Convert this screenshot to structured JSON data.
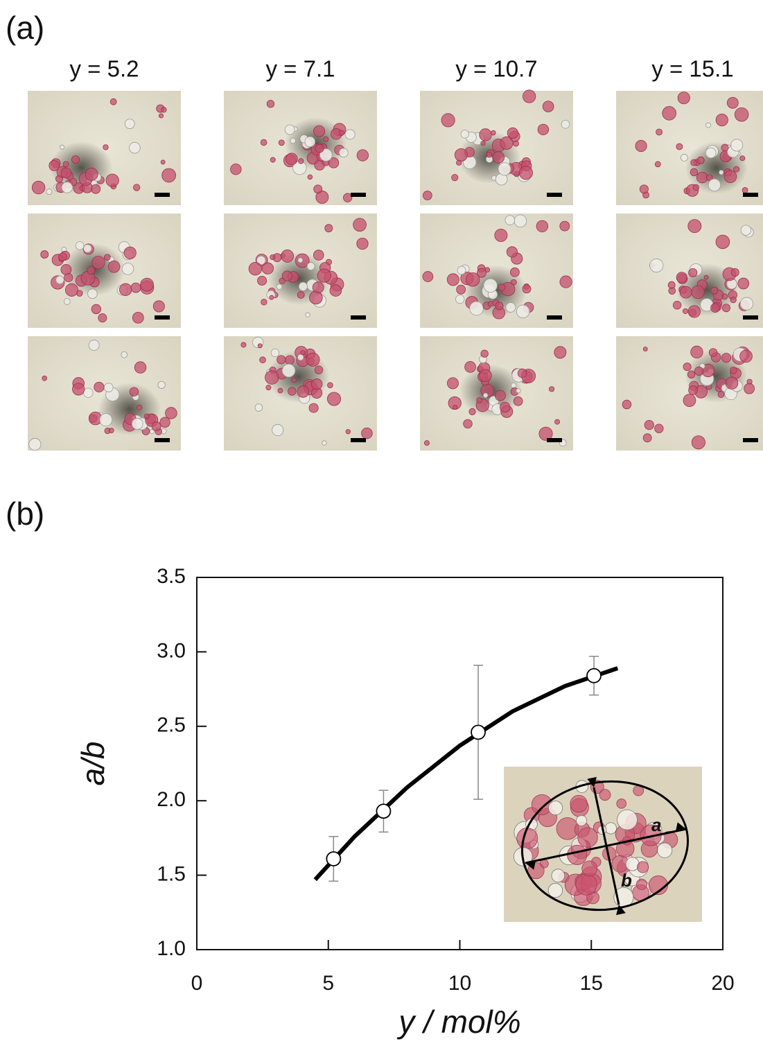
{
  "panel_a": {
    "label": "(a)",
    "columns": [
      "y = 5.2",
      "y = 7.1",
      "y = 10.7",
      "y = 15.1"
    ]
  },
  "panel_b": {
    "label": "(b)"
  },
  "chart_data": {
    "type": "scatter",
    "x_label": "y / mol%",
    "y_label": "a/b",
    "xlim": [
      0,
      20
    ],
    "xticks": [
      0,
      5,
      10,
      15,
      20
    ],
    "ylim": [
      1.0,
      3.5
    ],
    "yticks": [
      {
        "value": 1.0,
        "label": "1.0"
      },
      {
        "value": 1.5,
        "label": "1.5"
      },
      {
        "value": 2.0,
        "label": "2.0"
      },
      {
        "value": 2.5,
        "label": "2.5"
      },
      {
        "value": 3.0,
        "label": "3.0"
      },
      {
        "value": 3.5,
        "label": "3.5"
      }
    ],
    "series": [
      {
        "color": "#000000",
        "x": [
          5.2,
          7.1,
          10.7,
          15.1
        ],
        "values": [
          1.61,
          1.93,
          2.46,
          2.84
        ],
        "errors": [
          0.15,
          0.14,
          0.45,
          0.13
        ]
      }
    ],
    "fit": {
      "x": [
        4.5,
        6,
        8,
        10,
        12,
        14,
        16
      ],
      "values": [
        1.47,
        1.76,
        2.09,
        2.37,
        2.6,
        2.77,
        2.89
      ]
    },
    "inset_labels": [
      "a",
      "b"
    ]
  }
}
